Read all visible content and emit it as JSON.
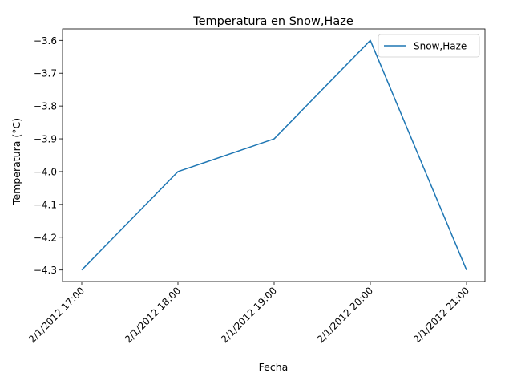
{
  "chart_data": {
    "type": "line",
    "title": "Temperatura en Snow,Haze",
    "xlabel": "Fecha",
    "ylabel": "Temperatura (°C)",
    "categories": [
      "2/1/2012 17:00",
      "2/1/2012 18:00",
      "2/1/2012 19:00",
      "2/1/2012 20:00",
      "2/1/2012 21:00"
    ],
    "series": [
      {
        "name": "Snow,Haze",
        "values": [
          -4.3,
          -4.0,
          -3.9,
          -3.6,
          -4.3
        ],
        "color": "#1f77b4"
      }
    ],
    "ylim": [
      -4.335,
      -3.565
    ],
    "yticks": [
      -4.3,
      -4.2,
      -4.1,
      -4.0,
      -3.9,
      -3.8,
      -3.7,
      -3.6
    ],
    "ytick_labels": [
      "−4.3",
      "−4.2",
      "−4.1",
      "−4.0",
      "−3.9",
      "−3.8",
      "−3.7",
      "−3.6"
    ],
    "grid": false,
    "legend_position": "top-right"
  }
}
